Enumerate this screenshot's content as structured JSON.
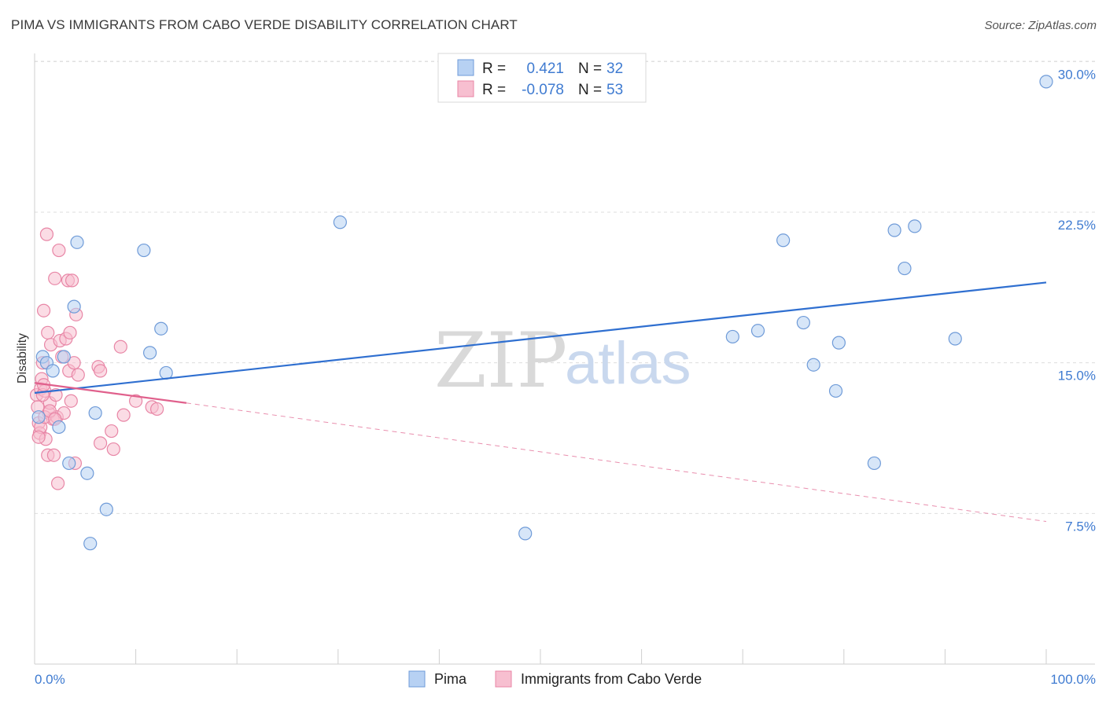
{
  "title": "PIMA VS IMMIGRANTS FROM CABO VERDE DISABILITY CORRELATION CHART",
  "source": "Source: ZipAtlas.com",
  "watermark": {
    "zip": "ZIP",
    "atlas": "atlas"
  },
  "colors": {
    "pima_fill": "#b7d1f3",
    "pima_stroke": "#6f9bd8",
    "pima_line": "#2f6fd0",
    "cabo_fill": "#f7bfd0",
    "cabo_stroke": "#e886a6",
    "cabo_line": "#e0608c",
    "grid": "#dddddd",
    "axis_text": "#3f7bd1"
  },
  "legend": {
    "r_label": "R =",
    "n_label": "N =",
    "pima": {
      "r": "0.421",
      "n": "32"
    },
    "cabo": {
      "r": "-0.078",
      "n": "53"
    }
  },
  "chart_data": {
    "type": "scatter",
    "title": "PIMA VS IMMIGRANTS FROM CABO VERDE DISABILITY CORRELATION CHART",
    "xlabel": "",
    "ylabel": "Disability",
    "xlim": [
      0,
      100
    ],
    "ylim": [
      0,
      31.5
    ],
    "x_tick_labels": [
      "0.0%",
      "100.0%"
    ],
    "y_ticks": [
      7.5,
      15.0,
      22.5,
      30.0
    ],
    "y_tick_labels": [
      "7.5%",
      "15.0%",
      "22.5%",
      "30.0%"
    ],
    "series": [
      {
        "name": "Pima",
        "trend": {
          "x": [
            0,
            100
          ],
          "y": [
            13.5,
            19.0
          ],
          "style": "solid"
        },
        "points": [
          {
            "x": 0.4,
            "y": 12.3
          },
          {
            "x": 0.8,
            "y": 15.3
          },
          {
            "x": 1.2,
            "y": 15.0
          },
          {
            "x": 1.8,
            "y": 14.6
          },
          {
            "x": 2.4,
            "y": 11.8
          },
          {
            "x": 2.9,
            "y": 15.3
          },
          {
            "x": 3.4,
            "y": 10.0
          },
          {
            "x": 3.9,
            "y": 17.8
          },
          {
            "x": 4.2,
            "y": 21.0
          },
          {
            "x": 5.2,
            "y": 9.5
          },
          {
            "x": 6.0,
            "y": 12.5
          },
          {
            "x": 7.1,
            "y": 7.7
          },
          {
            "x": 5.5,
            "y": 6.0
          },
          {
            "x": 10.8,
            "y": 20.6
          },
          {
            "x": 11.4,
            "y": 15.5
          },
          {
            "x": 12.5,
            "y": 16.7
          },
          {
            "x": 13.0,
            "y": 14.5
          },
          {
            "x": 30.2,
            "y": 22.0
          },
          {
            "x": 48.5,
            "y": 6.5
          },
          {
            "x": 69.0,
            "y": 16.3
          },
          {
            "x": 71.5,
            "y": 16.6
          },
          {
            "x": 74.0,
            "y": 21.1
          },
          {
            "x": 76.0,
            "y": 17.0
          },
          {
            "x": 77.0,
            "y": 14.9
          },
          {
            "x": 79.5,
            "y": 16.0
          },
          {
            "x": 79.2,
            "y": 13.6
          },
          {
            "x": 83.0,
            "y": 10.0
          },
          {
            "x": 85.0,
            "y": 21.6
          },
          {
            "x": 86.0,
            "y": 19.7
          },
          {
            "x": 87.0,
            "y": 21.8
          },
          {
            "x": 91.0,
            "y": 16.2
          },
          {
            "x": 100.0,
            "y": 29.0
          }
        ]
      },
      {
        "name": "Immigrants from Cabo Verde",
        "trend": {
          "x": [
            0,
            15
          ],
          "y": [
            14.0,
            13.0
          ],
          "style": "solid",
          "extended_x": [
            15,
            100
          ],
          "extended_y": [
            13.0,
            7.1
          ],
          "extended_style": "dashed"
        },
        "points": [
          {
            "x": 0.2,
            "y": 13.4
          },
          {
            "x": 0.3,
            "y": 12.8
          },
          {
            "x": 0.4,
            "y": 12.0
          },
          {
            "x": 0.5,
            "y": 11.5
          },
          {
            "x": 0.6,
            "y": 13.7
          },
          {
            "x": 0.7,
            "y": 14.2
          },
          {
            "x": 0.8,
            "y": 15.0
          },
          {
            "x": 0.9,
            "y": 17.6
          },
          {
            "x": 1.0,
            "y": 13.6
          },
          {
            "x": 1.1,
            "y": 11.2
          },
          {
            "x": 1.2,
            "y": 21.4
          },
          {
            "x": 1.3,
            "y": 16.5
          },
          {
            "x": 1.4,
            "y": 12.5
          },
          {
            "x": 1.5,
            "y": 13.0
          },
          {
            "x": 1.3,
            "y": 10.4
          },
          {
            "x": 1.6,
            "y": 15.9
          },
          {
            "x": 1.8,
            "y": 12.2
          },
          {
            "x": 1.9,
            "y": 10.4
          },
          {
            "x": 2.0,
            "y": 19.2
          },
          {
            "x": 2.1,
            "y": 13.4
          },
          {
            "x": 2.2,
            "y": 12.3
          },
          {
            "x": 2.3,
            "y": 9.0
          },
          {
            "x": 2.4,
            "y": 20.6
          },
          {
            "x": 2.5,
            "y": 16.1
          },
          {
            "x": 2.7,
            "y": 15.3
          },
          {
            "x": 2.9,
            "y": 12.5
          },
          {
            "x": 3.1,
            "y": 16.2
          },
          {
            "x": 3.3,
            "y": 19.1
          },
          {
            "x": 3.4,
            "y": 14.6
          },
          {
            "x": 3.6,
            "y": 13.1
          },
          {
            "x": 3.5,
            "y": 16.5
          },
          {
            "x": 3.7,
            "y": 19.1
          },
          {
            "x": 3.9,
            "y": 15.0
          },
          {
            "x": 4.1,
            "y": 17.4
          },
          {
            "x": 4.3,
            "y": 14.4
          },
          {
            "x": 4.0,
            "y": 10.0
          },
          {
            "x": 6.3,
            "y": 14.8
          },
          {
            "x": 6.5,
            "y": 14.6
          },
          {
            "x": 6.5,
            "y": 11.0
          },
          {
            "x": 7.6,
            "y": 11.6
          },
          {
            "x": 7.8,
            "y": 10.7
          },
          {
            "x": 8.5,
            "y": 15.8
          },
          {
            "x": 8.8,
            "y": 12.4
          },
          {
            "x": 10.0,
            "y": 13.1
          },
          {
            "x": 11.6,
            "y": 12.8
          },
          {
            "x": 12.1,
            "y": 12.7
          },
          {
            "x": 0.6,
            "y": 11.8
          },
          {
            "x": 0.8,
            "y": 13.4
          },
          {
            "x": 1.0,
            "y": 12.3
          },
          {
            "x": 1.5,
            "y": 12.6
          },
          {
            "x": 2.0,
            "y": 12.2
          },
          {
            "x": 0.4,
            "y": 11.3
          },
          {
            "x": 0.9,
            "y": 13.9
          }
        ]
      }
    ]
  }
}
